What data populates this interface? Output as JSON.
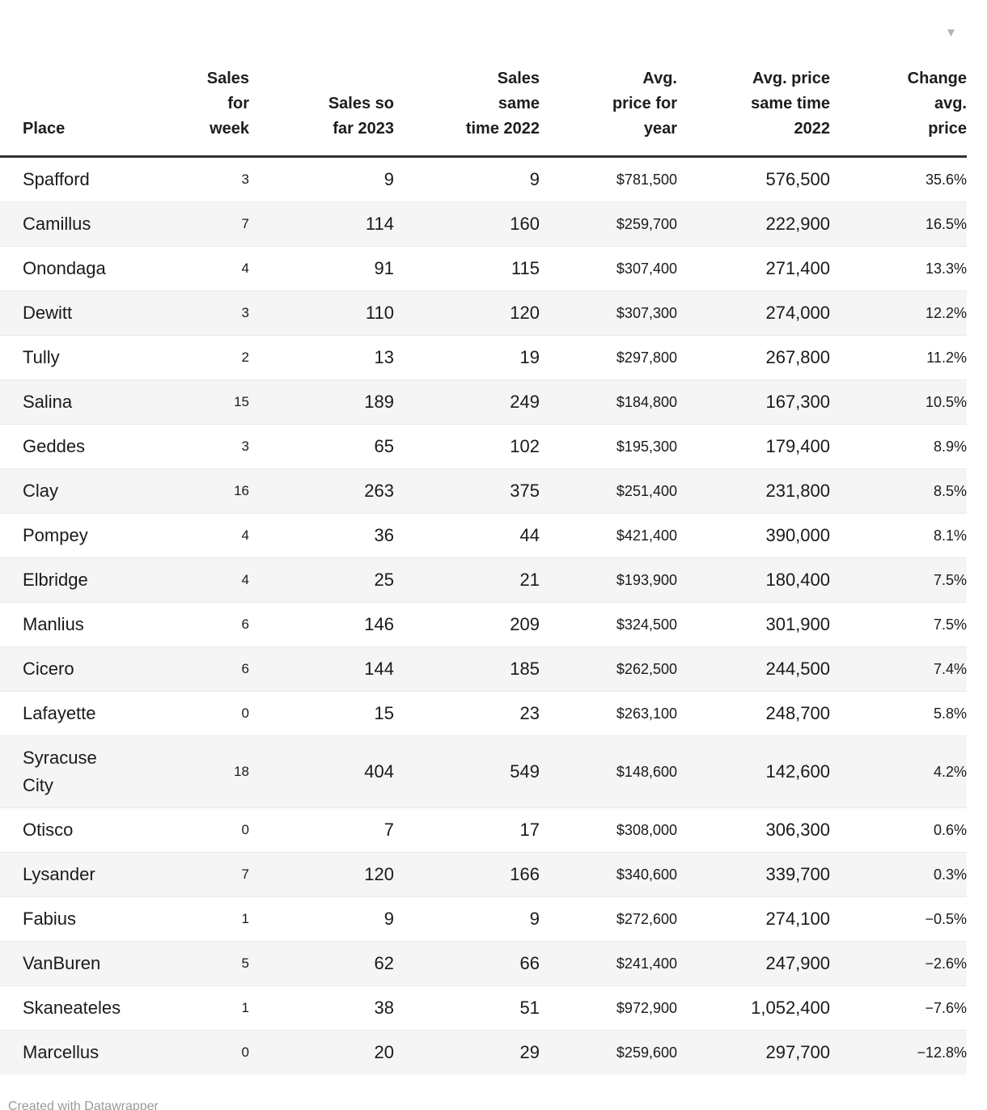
{
  "chart_data": {
    "type": "table",
    "columns": [
      "Place",
      "Sales for week",
      "Sales so far 2023",
      "Sales same time 2022",
      "Avg. price for year",
      "Avg. price same time 2022",
      "Change avg. price"
    ],
    "rows": [
      [
        "Spafford",
        "3",
        "9",
        "9",
        "$781,500",
        "576,500",
        "35.6%"
      ],
      [
        "Camillus",
        "7",
        "114",
        "160",
        "$259,700",
        "222,900",
        "16.5%"
      ],
      [
        "Onondaga",
        "4",
        "91",
        "115",
        "$307,400",
        "271,400",
        "13.3%"
      ],
      [
        "Dewitt",
        "3",
        "110",
        "120",
        "$307,300",
        "274,000",
        "12.2%"
      ],
      [
        "Tully",
        "2",
        "13",
        "19",
        "$297,800",
        "267,800",
        "11.2%"
      ],
      [
        "Salina",
        "15",
        "189",
        "249",
        "$184,800",
        "167,300",
        "10.5%"
      ],
      [
        "Geddes",
        "3",
        "65",
        "102",
        "$195,300",
        "179,400",
        "8.9%"
      ],
      [
        "Clay",
        "16",
        "263",
        "375",
        "$251,400",
        "231,800",
        "8.5%"
      ],
      [
        "Pompey",
        "4",
        "36",
        "44",
        "$421,400",
        "390,000",
        "8.1%"
      ],
      [
        "Elbridge",
        "4",
        "25",
        "21",
        "$193,900",
        "180,400",
        "7.5%"
      ],
      [
        "Manlius",
        "6",
        "146",
        "209",
        "$324,500",
        "301,900",
        "7.5%"
      ],
      [
        "Cicero",
        "6",
        "144",
        "185",
        "$262,500",
        "244,500",
        "7.4%"
      ],
      [
        "Lafayette",
        "0",
        "15",
        "23",
        "$263,100",
        "248,700",
        "5.8%"
      ],
      [
        "Syracuse City",
        "18",
        "404",
        "549",
        "$148,600",
        "142,600",
        "4.2%"
      ],
      [
        "Otisco",
        "0",
        "7",
        "17",
        "$308,000",
        "306,300",
        "0.6%"
      ],
      [
        "Lysander",
        "7",
        "120",
        "166",
        "$340,600",
        "339,700",
        "0.3%"
      ],
      [
        "Fabius",
        "1",
        "9",
        "9",
        "$272,600",
        "274,100",
        "−0.5%"
      ],
      [
        "VanBuren",
        "5",
        "62",
        "66",
        "$241,400",
        "247,900",
        "−2.6%"
      ],
      [
        "Skaneateles",
        "1",
        "38",
        "51",
        "$972,900",
        "1,052,400",
        "−7.6%"
      ],
      [
        "Marcellus",
        "0",
        "20",
        "29",
        "$259,600",
        "297,700",
        "−12.8%"
      ]
    ]
  },
  "table": {
    "headers": [
      "Place",
      "Sales\nfor\nweek",
      "Sales so\nfar 2023",
      "Sales\nsame\ntime 2022",
      "Avg.\nprice for\nyear",
      "Avg. price\nsame time\n2022",
      "Change\navg.\nprice"
    ],
    "sort_icon": "▼"
  },
  "footer": {
    "text": "Created with Datawrapper"
  },
  "colors": {
    "stripe": "#f5f5f5",
    "header_border": "#333333",
    "body_text": "#1a1a1a",
    "footer_text": "#9b9b9b",
    "sort_arrow": "#b3b3b3"
  }
}
